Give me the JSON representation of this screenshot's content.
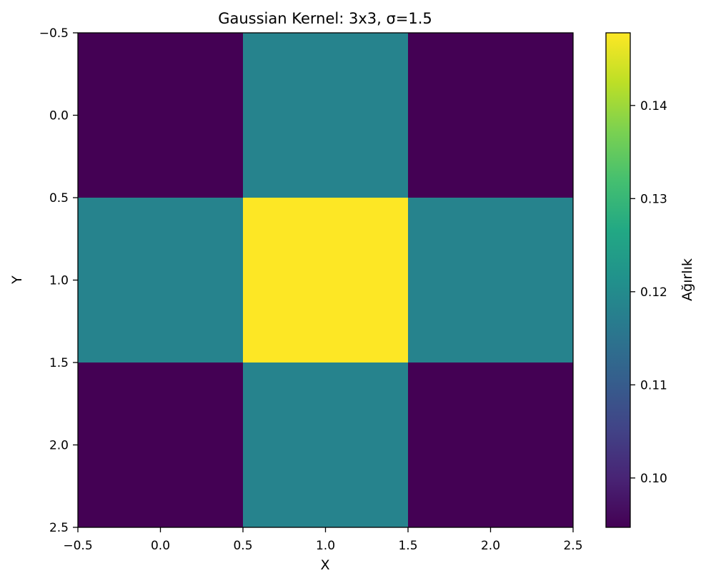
{
  "chart_data": {
    "type": "heatmap",
    "title": "Gaussian Kernel: 3x3, σ=1.5",
    "xlabel": "X",
    "ylabel": "Y",
    "xlim": [
      -0.5,
      2.5
    ],
    "ylim": [
      2.5,
      -0.5
    ],
    "x_ticks": [
      -0.5,
      0.0,
      0.5,
      1.0,
      1.5,
      2.0,
      2.5
    ],
    "x_tick_labels": [
      "−0.5",
      "0.0",
      "0.5",
      "1.0",
      "1.5",
      "2.0",
      "2.5"
    ],
    "y_ticks": [
      -0.5,
      0.0,
      0.5,
      1.0,
      1.5,
      2.0,
      2.5
    ],
    "y_tick_labels": [
      "−0.5",
      "0.0",
      "0.5",
      "1.0",
      "1.5",
      "2.0",
      "2.5"
    ],
    "values": [
      [
        0.0947,
        0.1183,
        0.0947
      ],
      [
        0.1183,
        0.1478,
        0.1183
      ],
      [
        0.0947,
        0.1183,
        0.0947
      ]
    ],
    "colormap": "viridis",
    "colorbar": {
      "label": "Ağırlık",
      "range": [
        0.0947,
        0.1478
      ],
      "ticks": [
        0.1,
        0.11,
        0.12,
        0.13,
        0.14
      ],
      "tick_labels": [
        "0.10",
        "0.11",
        "0.12",
        "0.13",
        "0.14"
      ]
    }
  }
}
